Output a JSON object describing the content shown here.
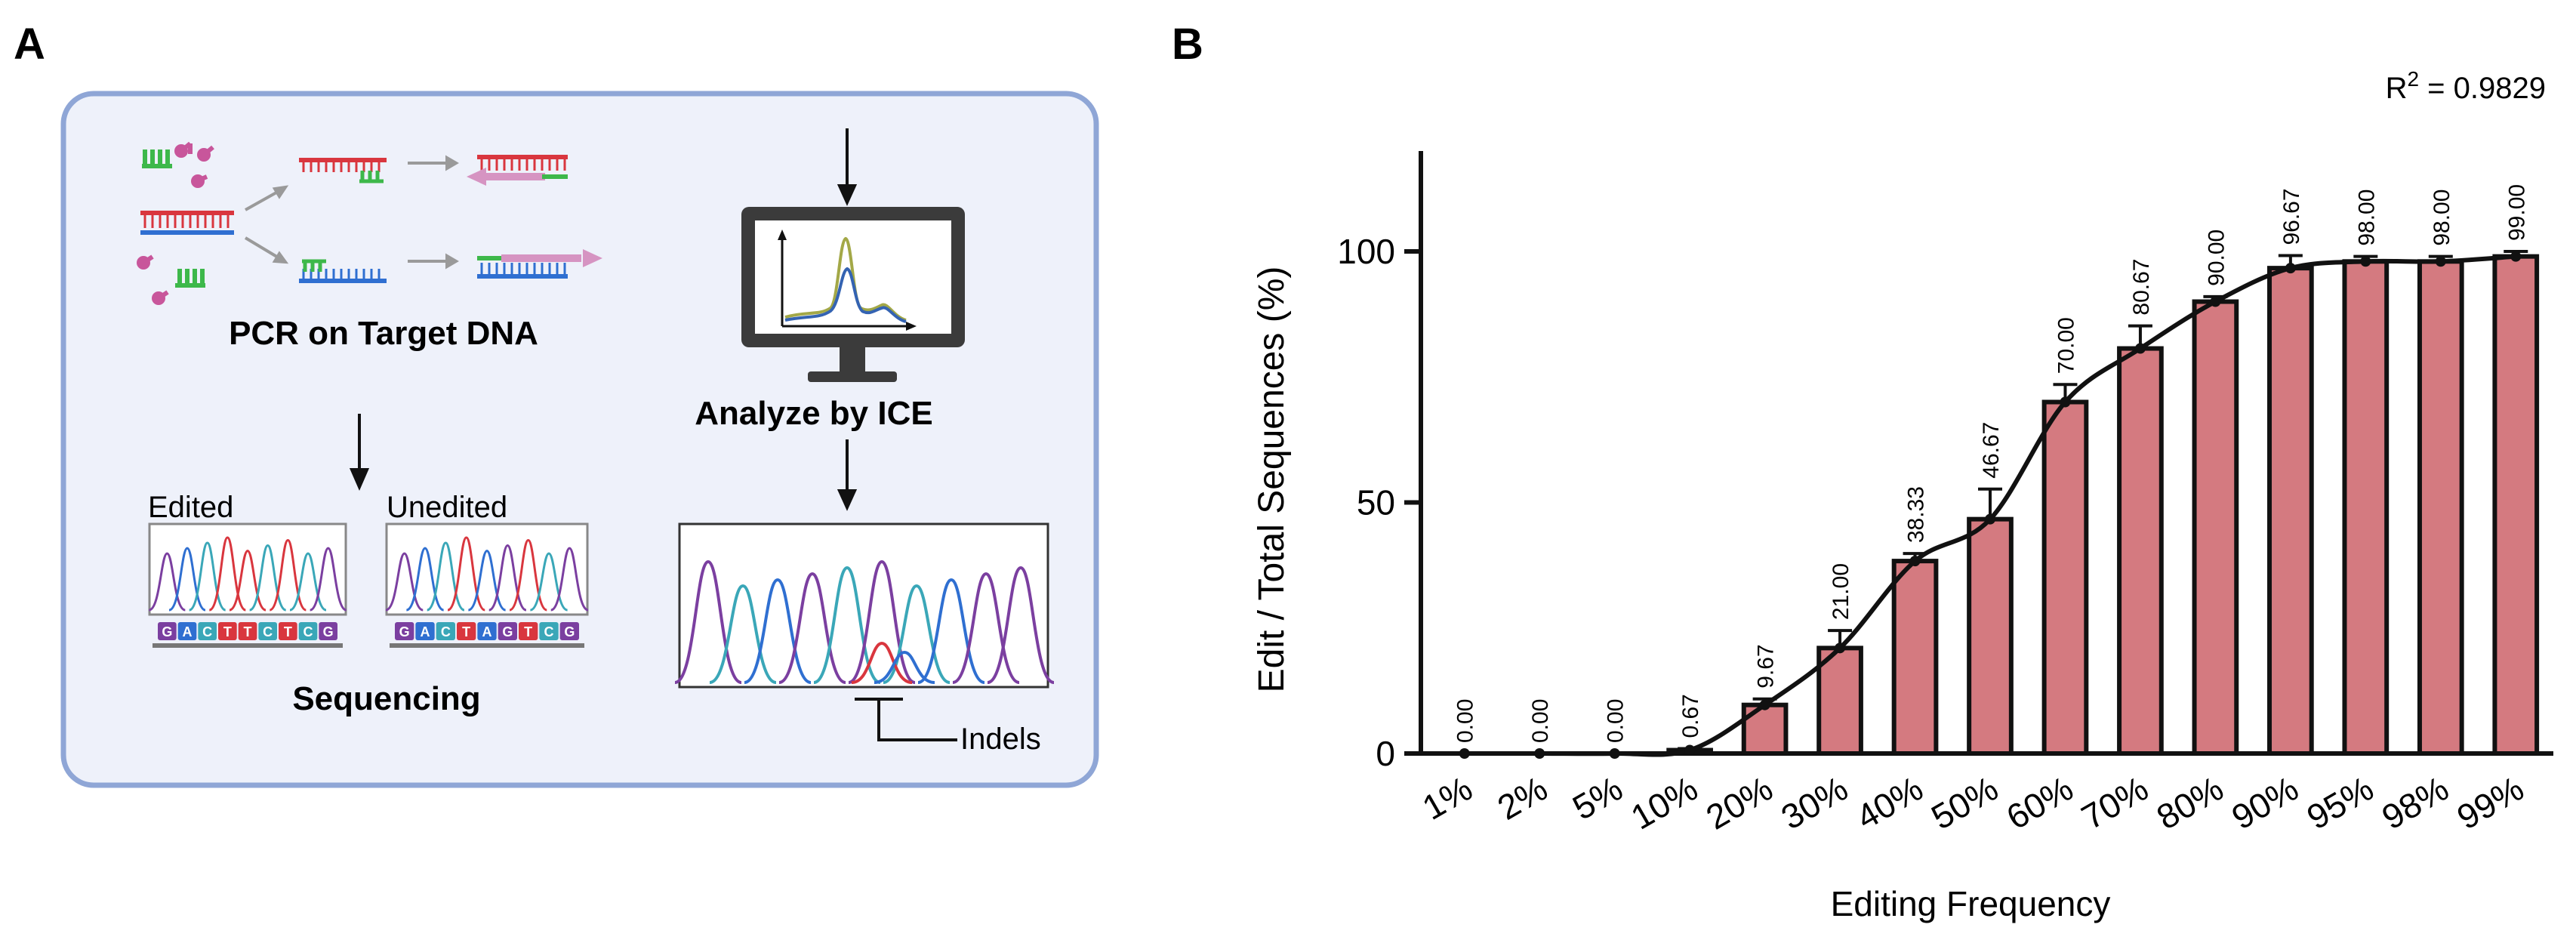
{
  "panel_a": {
    "label": "A",
    "pcr_title": "PCR on Target DNA",
    "analyze_title": "Analyze by ICE",
    "edited_label": "Edited",
    "unedited_label": "Unedited",
    "sequencing_title": "Sequencing",
    "indels_label": "Indels",
    "edited_bases": [
      "G",
      "A",
      "C",
      "T",
      "T",
      "C",
      "T",
      "C",
      "G"
    ],
    "unedited_bases": [
      "G",
      "A",
      "C",
      "T",
      "A",
      "G",
      "T",
      "C",
      "G"
    ],
    "base_colors": {
      "A": "#2f6fd1",
      "C": "#3aa7b8",
      "G": "#7b3fa0",
      "T": "#d9363e"
    },
    "colors": {
      "panel_bg": "#eef1fa",
      "panel_border": "#8fa6d6",
      "dna_red": "#d9363e",
      "dna_blue": "#2f6fd1",
      "primer_green": "#3db84a",
      "primer_pink": "#c8569b"
    }
  },
  "chart_data": {
    "type": "bar",
    "panel_label": "B",
    "title": "",
    "annotation": "R",
    "annotation_sup": "2",
    "annotation_value": " = 0.9829",
    "xlabel": "Editing Frequency",
    "ylabel": "Edit / Total Sequences (%)",
    "categories": [
      "1%",
      "2%",
      "5%",
      "10%",
      "20%",
      "30%",
      "40%",
      "50%",
      "60%",
      "70%",
      "80%",
      "90%",
      "95%",
      "98%",
      "99%"
    ],
    "values": [
      0.0,
      0.0,
      0.0,
      0.67,
      9.67,
      21.0,
      38.33,
      46.67,
      70.0,
      80.67,
      90.0,
      96.67,
      98.0,
      98.0,
      99.0
    ],
    "value_labels": [
      "0.00",
      "0.00",
      "0.00",
      "0.67",
      "9.67",
      "21.00",
      "38.33",
      "46.67",
      "70.00",
      "80.67",
      "90.00",
      "96.67",
      "98.00",
      "98.00",
      "99.00"
    ],
    "errors": [
      0,
      0,
      0,
      0.3,
      1.2,
      3.5,
      1.5,
      6.0,
      3.5,
      4.5,
      1.0,
      2.5,
      1.0,
      1.0,
      1.0
    ],
    "ylim": [
      0,
      120
    ],
    "yticks": [
      0,
      50,
      100
    ],
    "ytick_labels": [
      "0",
      "50",
      "100"
    ],
    "fit_curve": true,
    "grid": false,
    "bar_color": "#d47a80"
  }
}
